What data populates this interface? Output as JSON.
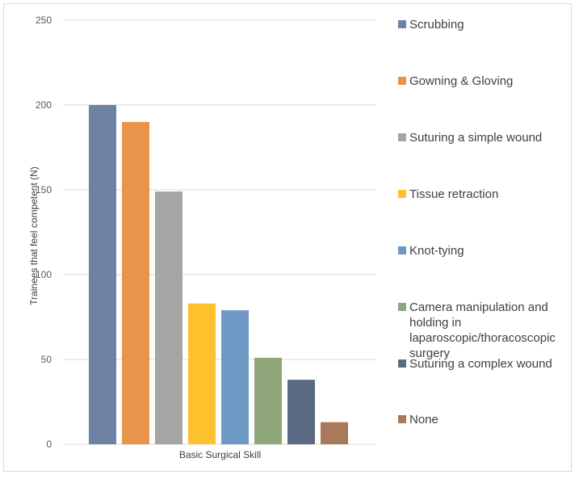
{
  "chart_data": {
    "type": "bar",
    "xlabel": "Basic Surgical Skill",
    "ylabel": "Trainees that feel competent (N)",
    "ylim": [
      0,
      250
    ],
    "yticks": [
      0,
      50,
      100,
      150,
      200,
      250
    ],
    "grid": true,
    "legend_position": "right",
    "series": [
      {
        "name": "Scrubbing",
        "value": 200,
        "color": "#6e82a4"
      },
      {
        "name": "Gowning & Gloving",
        "value": 190,
        "color": "#e8954b"
      },
      {
        "name": "Suturing a simple wound",
        "value": 149,
        "color": "#a5a5a5"
      },
      {
        "name": "Tissue retraction",
        "value": 83,
        "color": "#fcc12d"
      },
      {
        "name": "Knot-tying",
        "value": 79,
        "color": "#6f98c4"
      },
      {
        "name": "Camera manipulation  and holding in laparoscopic/thoracoscopic surgery",
        "value": 51,
        "color": "#8ea67a"
      },
      {
        "name": "Suturing a complex wound",
        "value": 38,
        "color": "#5b6982"
      },
      {
        "name": "None",
        "value": 13,
        "color": "#a8795a"
      }
    ]
  }
}
